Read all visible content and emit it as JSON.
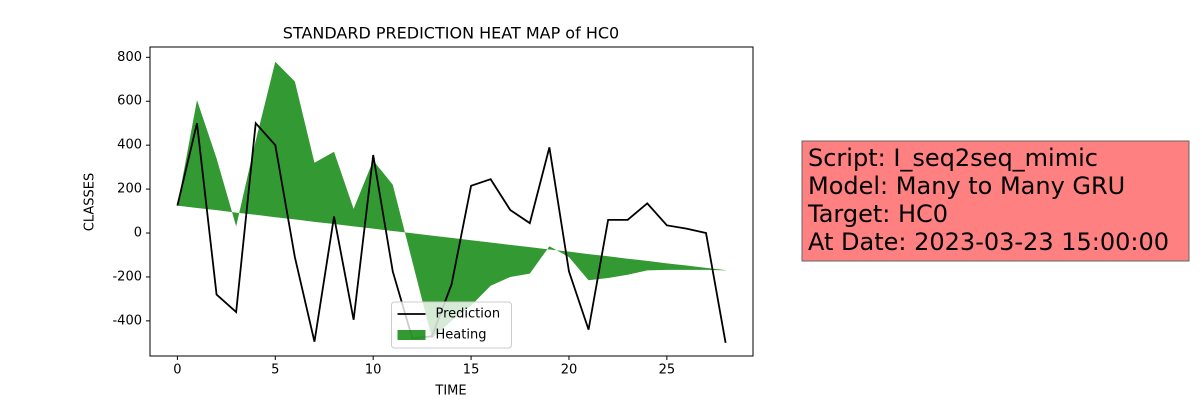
{
  "chart_data": {
    "type": "line",
    "title": "STANDARD PREDICTION HEAT MAP of HC0",
    "x_label": "TIME",
    "y_label": "CLASSES",
    "x": [
      0,
      1,
      2,
      3,
      4,
      5,
      6,
      7,
      8,
      9,
      10,
      11,
      12,
      13,
      14,
      15,
      16,
      17,
      18,
      19,
      20,
      21,
      22,
      23,
      24,
      25,
      26,
      27,
      28
    ],
    "series": [
      {
        "name": "Prediction",
        "type": "line",
        "color": "#000000",
        "values": [
          125,
          500,
          -280,
          -360,
          500,
          400,
          -110,
          -495,
          75,
          -395,
          355,
          -175,
          -480,
          -470,
          -235,
          215,
          245,
          105,
          45,
          390,
          -175,
          -440,
          60,
          60,
          135,
          35,
          20,
          0,
          -500
        ]
      },
      {
        "name": "Heating",
        "type": "area",
        "color": "#008000",
        "opacity": 0.8,
        "values": [
          125,
          605,
          340,
          30,
          420,
          780,
          690,
          320,
          370,
          110,
          330,
          220,
          -130,
          -480,
          -400,
          -330,
          -240,
          -200,
          -185,
          -60,
          -110,
          -215,
          -205,
          -190,
          -170,
          -168,
          -168,
          -168,
          -170
        ],
        "base": [
          125,
          114,
          104,
          93,
          83,
          72,
          62,
          51,
          41,
          30,
          20,
          9,
          -1,
          -12,
          -22,
          -33,
          -43,
          -54,
          -64,
          -75,
          -85,
          -96,
          -106,
          -117,
          -127,
          -138,
          -148,
          -159,
          -169
        ]
      }
    ],
    "xlim": [
      -1.4,
      29.4
    ],
    "ylim": [
      -560,
      847
    ],
    "xticks": [
      0,
      5,
      10,
      15,
      20,
      25
    ],
    "yticks": [
      -400,
      -200,
      0,
      200,
      400,
      600,
      800
    ],
    "legend": "lower center",
    "annotation": {
      "lines": [
        "Script: I_seq2seq_mimic",
        "Model: Many to Many GRU",
        "Target: HC0",
        "At Date: 2023-03-23 15:00:00"
      ],
      "color": "#ff8080"
    }
  }
}
